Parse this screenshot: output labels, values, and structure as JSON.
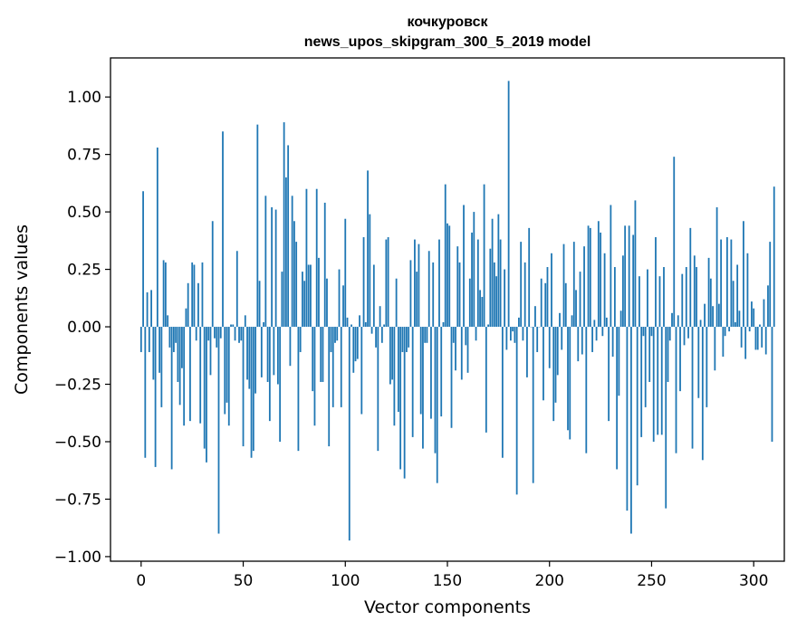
{
  "chart_data": {
    "type": "bar",
    "title": "кочкуровск",
    "subtitle": "news_upos_skipgram_300_5_2019 model",
    "xlabel": "Vector components",
    "ylabel": "Components values",
    "xlim": [
      -15,
      315
    ],
    "ylim": [
      -1.02,
      1.17
    ],
    "xticks": [
      0,
      50,
      100,
      150,
      200,
      250,
      300
    ],
    "yticks": [
      1.0,
      0.75,
      0.5,
      0.25,
      0.0,
      -0.25,
      -0.5,
      -0.75,
      -1.0
    ],
    "ytick_labels": [
      "1.00",
      "0.75",
      "0.50",
      "0.25",
      "0.00",
      "−0.25",
      "−0.50",
      "−0.75",
      "−1.00"
    ],
    "bar_color": "#1f77b4",
    "grid": false,
    "values": [
      -0.11,
      0.59,
      -0.57,
      0.15,
      -0.11,
      0.16,
      -0.23,
      -0.61,
      0.78,
      -0.2,
      -0.35,
      0.29,
      0.28,
      0.05,
      -0.09,
      -0.62,
      -0.11,
      -0.07,
      -0.24,
      -0.34,
      -0.18,
      -0.43,
      0.08,
      0.19,
      -0.41,
      0.28,
      0.27,
      -0.06,
      0.19,
      -0.42,
      0.28,
      -0.53,
      -0.59,
      -0.06,
      -0.21,
      0.46,
      -0.05,
      -0.09,
      -0.9,
      -0.05,
      0.85,
      -0.38,
      -0.33,
      -0.43,
      0.01,
      0.01,
      -0.06,
      0.33,
      -0.07,
      -0.06,
      -0.52,
      0.05,
      -0.23,
      -0.27,
      -0.57,
      -0.54,
      -0.29,
      0.88,
      0.2,
      -0.22,
      0.02,
      0.57,
      -0.24,
      -0.41,
      0.52,
      -0.21,
      0.51,
      -0.25,
      -0.5,
      0.24,
      0.89,
      0.65,
      0.79,
      -0.17,
      0.57,
      0.46,
      0.37,
      -0.54,
      -0.11,
      0.24,
      0.2,
      0.6,
      0.27,
      0.27,
      -0.28,
      -0.43,
      0.6,
      0.3,
      -0.24,
      -0.24,
      0.54,
      0.21,
      -0.52,
      -0.11,
      -0.35,
      -0.07,
      -0.06,
      0.25,
      -0.35,
      0.18,
      0.47,
      0.04,
      -0.93,
      0.01,
      -0.2,
      -0.15,
      -0.14,
      0.05,
      -0.38,
      0.39,
      0.02,
      0.68,
      0.49,
      -0.03,
      0.27,
      -0.09,
      -0.54,
      0.09,
      -0.07,
      0.01,
      0.38,
      0.39,
      -0.25,
      -0.23,
      -0.43,
      0.21,
      -0.37,
      -0.62,
      -0.11,
      -0.66,
      -0.11,
      -0.09,
      0.29,
      -0.48,
      0.38,
      0.24,
      0.36,
      -0.38,
      -0.53,
      -0.07,
      -0.07,
      0.33,
      -0.4,
      0.28,
      -0.55,
      -0.68,
      0.38,
      -0.39,
      0.02,
      0.62,
      0.45,
      0.44,
      -0.44,
      -0.07,
      -0.19,
      0.35,
      0.28,
      -0.23,
      0.53,
      -0.08,
      -0.2,
      0.21,
      0.41,
      0.5,
      -0.06,
      0.38,
      0.16,
      0.13,
      0.62,
      -0.46,
      0.01,
      0.34,
      0.47,
      0.28,
      0.22,
      0.49,
      0.38,
      -0.57,
      0.25,
      -0.1,
      1.07,
      -0.06,
      -0.02,
      -0.07,
      -0.73,
      0.04,
      0.37,
      -0.06,
      0.28,
      -0.22,
      0.43,
      0.0,
      -0.68,
      0.09,
      -0.11,
      0.0,
      0.21,
      -0.32,
      0.19,
      0.26,
      -0.18,
      0.32,
      -0.41,
      -0.33,
      -0.21,
      0.06,
      -0.1,
      0.36,
      0.19,
      -0.45,
      -0.49,
      0.05,
      0.37,
      0.16,
      -0.15,
      0.24,
      -0.12,
      0.35,
      -0.55,
      0.44,
      0.43,
      -0.11,
      0.03,
      -0.06,
      0.46,
      0.41,
      -0.04,
      0.32,
      0.04,
      -0.41,
      0.53,
      -0.13,
      0.26,
      -0.62,
      -0.3,
      0.07,
      0.31,
      0.44,
      -0.8,
      0.44,
      -0.9,
      0.4,
      0.55,
      -0.69,
      0.22,
      -0.48,
      -0.04,
      -0.35,
      0.25,
      -0.24,
      -0.04,
      -0.5,
      0.39,
      -0.47,
      0.22,
      -0.47,
      0.26,
      -0.79,
      -0.24,
      -0.06,
      0.06,
      0.74,
      -0.55,
      0.05,
      -0.28,
      0.23,
      -0.08,
      0.26,
      -0.05,
      0.43,
      -0.53,
      0.31,
      0.26,
      -0.31,
      0.03,
      -0.58,
      0.1,
      -0.35,
      0.3,
      0.21,
      0.09,
      -0.19,
      0.52,
      0.1,
      0.38,
      -0.13,
      -0.04,
      0.39,
      -0.02,
      0.38,
      0.2,
      0.02,
      0.27,
      0.07,
      -0.09,
      0.46,
      -0.14,
      0.32,
      -0.02,
      0.11,
      0.08,
      -0.1,
      -0.1,
      0.01,
      -0.09,
      0.12,
      -0.12,
      0.18,
      0.37,
      -0.5,
      0.61
    ]
  }
}
